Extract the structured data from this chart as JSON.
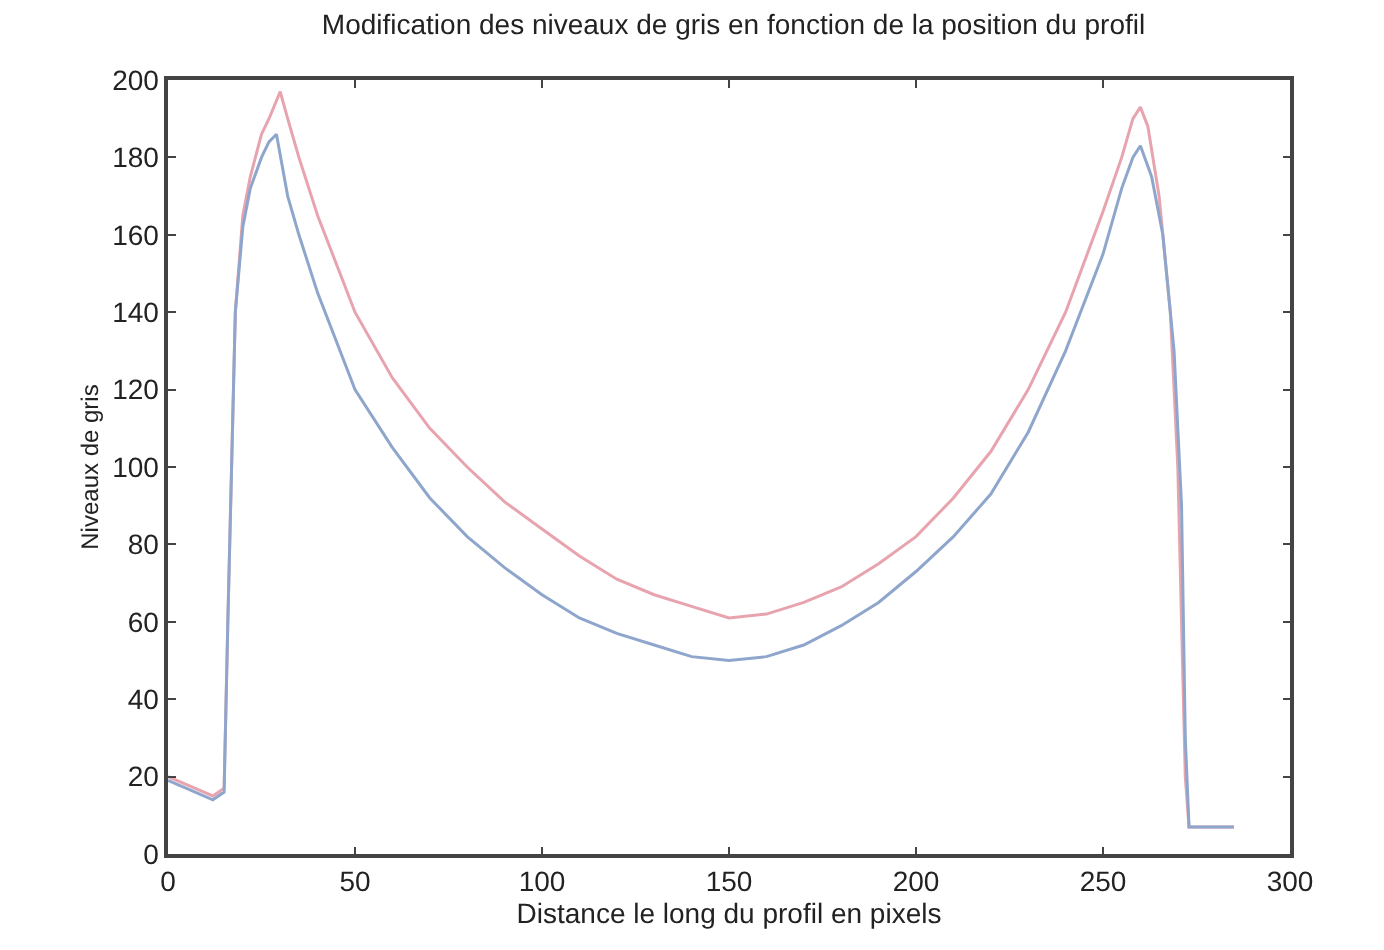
{
  "chart_data": {
    "type": "line",
    "title": "Modification des niveaux de gris en fonction de la position du profil",
    "xlabel": "Distance le long du profil en pixels",
    "ylabel": "Niveaux de gris",
    "xlim": [
      0,
      300
    ],
    "ylim": [
      0,
      200
    ],
    "xticks": [
      0,
      50,
      100,
      150,
      200,
      250,
      300
    ],
    "yticks": [
      0,
      20,
      40,
      60,
      80,
      100,
      120,
      140,
      160,
      180,
      200
    ],
    "marker": "none",
    "line_style": "solid",
    "series": [
      {
        "color": "#e8a4ae",
        "x": [
          0,
          12,
          15,
          16,
          18,
          20,
          22,
          25,
          27,
          30,
          32,
          35,
          40,
          50,
          60,
          70,
          80,
          90,
          100,
          110,
          120,
          130,
          140,
          150,
          160,
          170,
          180,
          190,
          200,
          210,
          220,
          230,
          240,
          250,
          255,
          258,
          260,
          262,
          265,
          268,
          270,
          272,
          273,
          285
        ],
        "values": [
          20,
          15,
          17,
          60,
          140,
          165,
          175,
          186,
          190,
          197,
          190,
          180,
          165,
          140,
          123,
          110,
          100,
          91,
          84,
          77,
          71,
          67,
          64,
          61,
          62,
          65,
          69,
          75,
          82,
          92,
          104,
          120,
          140,
          166,
          180,
          190,
          193,
          188,
          170,
          140,
          100,
          20,
          7,
          7
        ]
      },
      {
        "color": "#8fa6cc",
        "x": [
          0,
          12,
          15,
          16,
          18,
          20,
          22,
          25,
          27,
          29,
          32,
          35,
          40,
          50,
          60,
          70,
          80,
          90,
          100,
          110,
          120,
          130,
          140,
          150,
          160,
          170,
          180,
          190,
          200,
          210,
          220,
          230,
          240,
          250,
          255,
          258,
          260,
          263,
          266,
          269,
          271,
          272,
          273,
          285
        ],
        "values": [
          19,
          14,
          16,
          60,
          140,
          162,
          172,
          180,
          184,
          186,
          170,
          160,
          145,
          120,
          105,
          92,
          82,
          74,
          67,
          61,
          57,
          54,
          51,
          50,
          51,
          54,
          59,
          65,
          73,
          82,
          93,
          109,
          130,
          155,
          172,
          180,
          183,
          175,
          160,
          130,
          90,
          30,
          7,
          7
        ]
      }
    ]
  }
}
